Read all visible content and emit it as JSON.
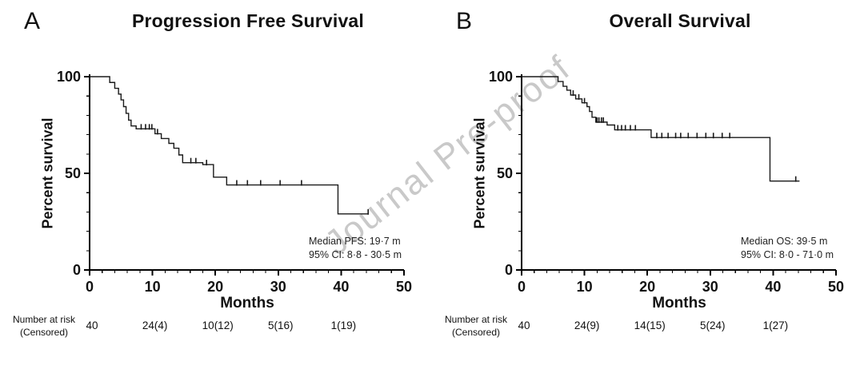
{
  "figure": {
    "watermark": "Journal Pre-proof"
  },
  "panels": [
    {
      "label": "A",
      "title": "Progression Free Survival",
      "ylabel": "Percent survival",
      "xlabel": "Months",
      "annotation": {
        "line1": "Median PFS: 19·7 m",
        "line2": "95% CI: 8·8 - 30·5 m"
      },
      "risk_caption": {
        "line1": "Number at risk",
        "line2": "(Censored)"
      }
    },
    {
      "label": "B",
      "title": "Overall Survival",
      "ylabel": "Percent survival",
      "xlabel": "Months",
      "annotation": {
        "line1": "Median OS: 39·5 m",
        "line2": "95% CI: 8·0 - 71·0 m"
      },
      "risk_caption": {
        "line1": "Number at risk",
        "line2": "(Censored)"
      }
    }
  ],
  "chart_data": [
    {
      "type": "line",
      "subtype": "kaplan_meier_step",
      "title": "Progression Free Survival",
      "xlabel": "Months",
      "ylabel": "Percent survival",
      "xlim": [
        0,
        50
      ],
      "ylim": [
        0,
        100
      ],
      "xticks": [
        0,
        10,
        20,
        30,
        40,
        50
      ],
      "yticks": [
        0,
        50,
        100
      ],
      "minor_x_step": 2,
      "minor_y_step": 10,
      "events": [
        [
          0,
          100
        ],
        [
          3.2,
          97
        ],
        [
          4,
          94
        ],
        [
          4.6,
          91
        ],
        [
          5,
          88
        ],
        [
          5.4,
          84.5
        ],
        [
          5.8,
          81
        ],
        [
          6.2,
          77.5
        ],
        [
          6.6,
          74.5
        ],
        [
          7.4,
          73
        ],
        [
          10.4,
          70.5
        ],
        [
          11.4,
          68
        ],
        [
          12.6,
          65.5
        ],
        [
          13.4,
          63
        ],
        [
          14.2,
          59.5
        ],
        [
          14.8,
          55.5
        ],
        [
          18,
          54.5
        ],
        [
          19.7,
          48
        ],
        [
          21.8,
          44
        ],
        [
          39.5,
          29
        ]
      ],
      "x_end": 44.3,
      "censor_marks": [
        [
          8.2,
          73
        ],
        [
          8.9,
          73
        ],
        [
          9.5,
          73
        ],
        [
          9.9,
          73
        ],
        [
          10.8,
          70.5
        ],
        [
          16.1,
          55.5
        ],
        [
          16.9,
          55.5
        ],
        [
          18.6,
          54.5
        ],
        [
          23.4,
          44
        ],
        [
          25.1,
          44
        ],
        [
          27.2,
          44
        ],
        [
          30.3,
          44
        ],
        [
          33.7,
          44
        ],
        [
          44.3,
          29
        ]
      ],
      "median_label": "Median PFS: 19·7 m",
      "ci_label": "95% CI: 8·8 - 30·5 m",
      "risk_times": [
        0,
        10,
        20,
        30,
        40
      ],
      "risk_values": [
        "40",
        "24(4)",
        "10(12)",
        "5(16)",
        "1(19)"
      ]
    },
    {
      "type": "line",
      "subtype": "kaplan_meier_step",
      "title": "Overall Survival",
      "xlabel": "Months",
      "ylabel": "Percent survival",
      "xlim": [
        0,
        50
      ],
      "ylim": [
        0,
        100
      ],
      "xticks": [
        0,
        10,
        20,
        30,
        40,
        50
      ],
      "yticks": [
        0,
        50,
        100
      ],
      "minor_x_step": 2,
      "minor_y_step": 10,
      "events": [
        [
          0,
          100
        ],
        [
          5.8,
          97.5
        ],
        [
          6.6,
          95
        ],
        [
          7.2,
          93
        ],
        [
          7.8,
          90.5
        ],
        [
          8.6,
          88.5
        ],
        [
          9.6,
          86.5
        ],
        [
          10.4,
          84.5
        ],
        [
          10.8,
          82
        ],
        [
          11.2,
          79
        ],
        [
          11.8,
          76.5
        ],
        [
          13.6,
          75
        ],
        [
          14.8,
          72.5
        ],
        [
          20.6,
          68.5
        ],
        [
          39.5,
          46
        ]
      ],
      "x_end": 44.2,
      "censor_marks": [
        [
          8.2,
          90.5
        ],
        [
          9.1,
          88.5
        ],
        [
          10,
          86.5
        ],
        [
          12,
          76.5
        ],
        [
          12.3,
          76.5
        ],
        [
          12.7,
          76.5
        ],
        [
          13,
          76.5
        ],
        [
          15.3,
          72.5
        ],
        [
          15.9,
          72.5
        ],
        [
          16.5,
          72.5
        ],
        [
          17.3,
          72.5
        ],
        [
          18.1,
          72.5
        ],
        [
          21.5,
          68.5
        ],
        [
          22.3,
          68.5
        ],
        [
          23.3,
          68.5
        ],
        [
          24.5,
          68.5
        ],
        [
          25.3,
          68.5
        ],
        [
          26.5,
          68.5
        ],
        [
          27.9,
          68.5
        ],
        [
          29.3,
          68.5
        ],
        [
          30.5,
          68.5
        ],
        [
          31.9,
          68.5
        ],
        [
          33.1,
          68.5
        ],
        [
          43.6,
          46
        ]
      ],
      "median_label": "Median OS: 39·5 m",
      "ci_label": "95% CI: 8·0 - 71·0 m",
      "risk_times": [
        0,
        10,
        20,
        30,
        40
      ],
      "risk_values": [
        "40",
        "24(9)",
        "14(15)",
        "5(24)",
        "1(27)"
      ]
    }
  ]
}
